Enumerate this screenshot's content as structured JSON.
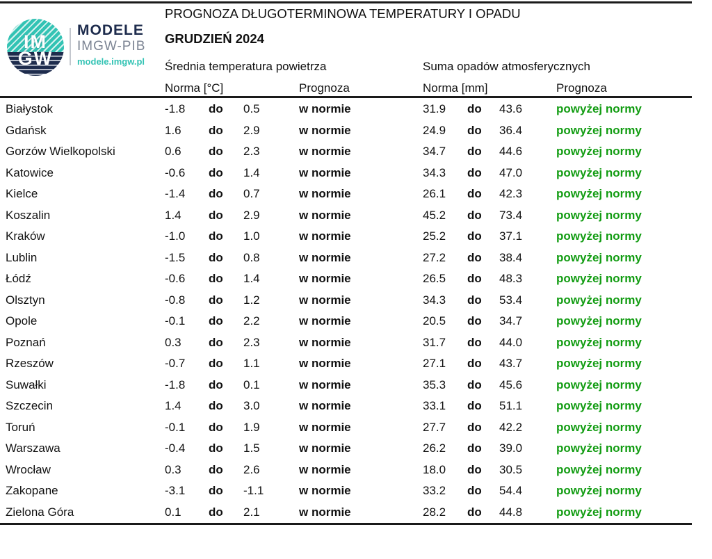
{
  "header": {
    "title": "PROGNOZA DŁUGOTERMINOWA TEMPERATURY I OPADU",
    "subtitle": "GRUDZIEŃ 2024"
  },
  "logo": {
    "circle_top_text": "IM",
    "circle_bottom_text": "GW",
    "brand": "MODELE",
    "org": "IMGW-PIB",
    "url": "modele.imgw.pl",
    "colors": {
      "teal": "#33c3b4",
      "navy": "#1e2c4d",
      "gray": "#7c8493"
    }
  },
  "columns": {
    "temp_group": "Średnia temperatura powietrza",
    "precip_group": "Suma opadów atmosferycznych",
    "temp_norm": "Norma [°C]",
    "temp_forecast": "Prognoza",
    "precip_norm": "Norma [mm]",
    "precip_forecast": "Prognoza",
    "range_word": "do"
  },
  "status_colors": {
    "above_norm_green": "#129c12"
  },
  "rows": [
    {
      "city": "Białystok",
      "t_low": "-1.8",
      "t_high": "0.5",
      "t_prog": "w normie",
      "p_low": "31.9",
      "p_high": "43.6",
      "p_prog": "powyżej normy"
    },
    {
      "city": "Gdańsk",
      "t_low": "1.6",
      "t_high": "2.9",
      "t_prog": "w normie",
      "p_low": "24.9",
      "p_high": "36.4",
      "p_prog": "powyżej normy"
    },
    {
      "city": "Gorzów Wielkopolski",
      "t_low": "0.6",
      "t_high": "2.3",
      "t_prog": "w normie",
      "p_low": "34.7",
      "p_high": "44.6",
      "p_prog": "powyżej normy"
    },
    {
      "city": "Katowice",
      "t_low": "-0.6",
      "t_high": "1.4",
      "t_prog": "w normie",
      "p_low": "34.3",
      "p_high": "47.0",
      "p_prog": "powyżej normy"
    },
    {
      "city": "Kielce",
      "t_low": "-1.4",
      "t_high": "0.7",
      "t_prog": "w normie",
      "p_low": "26.1",
      "p_high": "42.3",
      "p_prog": "powyżej normy"
    },
    {
      "city": "Koszalin",
      "t_low": "1.4",
      "t_high": "2.9",
      "t_prog": "w normie",
      "p_low": "45.2",
      "p_high": "73.4",
      "p_prog": "powyżej normy"
    },
    {
      "city": "Kraków",
      "t_low": "-1.0",
      "t_high": "1.0",
      "t_prog": "w normie",
      "p_low": "25.2",
      "p_high": "37.1",
      "p_prog": "powyżej normy"
    },
    {
      "city": "Lublin",
      "t_low": "-1.5",
      "t_high": "0.8",
      "t_prog": "w normie",
      "p_low": "27.2",
      "p_high": "38.4",
      "p_prog": "powyżej normy"
    },
    {
      "city": "Łódź",
      "t_low": "-0.6",
      "t_high": "1.4",
      "t_prog": "w normie",
      "p_low": "26.5",
      "p_high": "48.3",
      "p_prog": "powyżej normy"
    },
    {
      "city": "Olsztyn",
      "t_low": "-0.8",
      "t_high": "1.2",
      "t_prog": "w normie",
      "p_low": "34.3",
      "p_high": "53.4",
      "p_prog": "powyżej normy"
    },
    {
      "city": "Opole",
      "t_low": "-0.1",
      "t_high": "2.2",
      "t_prog": "w normie",
      "p_low": "20.5",
      "p_high": "34.7",
      "p_prog": "powyżej normy"
    },
    {
      "city": "Poznań",
      "t_low": "0.3",
      "t_high": "2.3",
      "t_prog": "w normie",
      "p_low": "31.7",
      "p_high": "44.0",
      "p_prog": "powyżej normy"
    },
    {
      "city": "Rzeszów",
      "t_low": "-0.7",
      "t_high": "1.1",
      "t_prog": "w normie",
      "p_low": "27.1",
      "p_high": "43.7",
      "p_prog": "powyżej normy"
    },
    {
      "city": "Suwałki",
      "t_low": "-1.8",
      "t_high": "0.1",
      "t_prog": "w normie",
      "p_low": "35.3",
      "p_high": "45.6",
      "p_prog": "powyżej normy"
    },
    {
      "city": "Szczecin",
      "t_low": "1.4",
      "t_high": "3.0",
      "t_prog": "w normie",
      "p_low": "33.1",
      "p_high": "51.1",
      "p_prog": "powyżej normy"
    },
    {
      "city": "Toruń",
      "t_low": "-0.1",
      "t_high": "1.9",
      "t_prog": "w normie",
      "p_low": "27.7",
      "p_high": "42.2",
      "p_prog": "powyżej normy"
    },
    {
      "city": "Warszawa",
      "t_low": "-0.4",
      "t_high": "1.5",
      "t_prog": "w normie",
      "p_low": "26.2",
      "p_high": "39.0",
      "p_prog": "powyżej normy"
    },
    {
      "city": "Wrocław",
      "t_low": "0.3",
      "t_high": "2.6",
      "t_prog": "w normie",
      "p_low": "18.0",
      "p_high": "30.5",
      "p_prog": "powyżej normy"
    },
    {
      "city": "Zakopane",
      "t_low": "-3.1",
      "t_high": "-1.1",
      "t_prog": "w normie",
      "p_low": "33.2",
      "p_high": "54.4",
      "p_prog": "powyżej normy"
    },
    {
      "city": "Zielona Góra",
      "t_low": "0.1",
      "t_high": "2.1",
      "t_prog": "w normie",
      "p_low": "28.2",
      "p_high": "44.8",
      "p_prog": "powyżej normy"
    }
  ]
}
